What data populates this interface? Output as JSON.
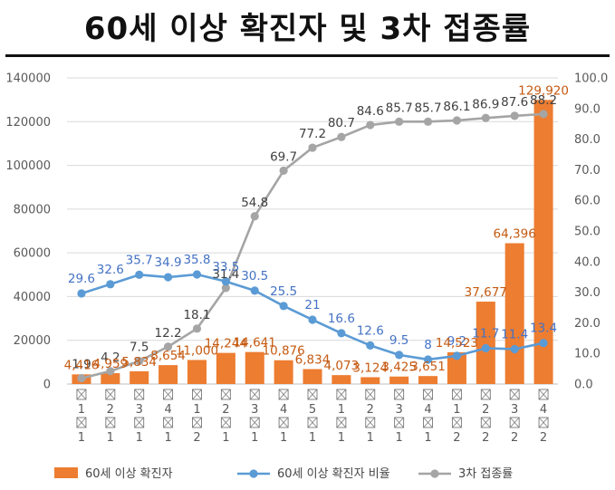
{
  "title": "60세 이상 확진자 및 3차 접종률",
  "colors": {
    "bar": "#ED7D31",
    "ratio_line": "#5B9BD5",
    "vax_line": "#A5A5A5",
    "ratio_label": "#4472C4",
    "bar_label": "#C55A11",
    "vax_label": "#404040"
  },
  "chart_data": {
    "type": "bar+line",
    "categories": [
      "⊠\n1\n⊠\n1",
      "⊠\n2\n⊠\n1",
      "⊠\n3\n⊠\n1",
      "⊠\n4\n⊠\n1",
      "⊠\n1\n⊠\n2",
      "⊠\n2\n⊠\n1",
      "⊠\n3\n⊠\n1",
      "⊠\n4\n⊠\n1",
      "⊠\n5\n⊠\n1",
      "⊠\n1\n⊠\n1",
      "⊠\n2\n⊠\n1",
      "⊠\n3\n⊠\n1",
      "⊠\n4\n⊠\n1",
      "⊠\n1\n⊠\n2",
      "⊠\n2\n⊠\n2",
      "⊠\n3\n⊠\n2",
      "⊠\n4\n⊠\n2"
    ],
    "category_rows": [
      [
        "1",
        "1"
      ],
      [
        "2",
        "1"
      ],
      [
        "3",
        "1"
      ],
      [
        "4",
        "1"
      ],
      [
        "1",
        "2"
      ],
      [
        "2",
        "1"
      ],
      [
        "3",
        "1"
      ],
      [
        "4",
        "1"
      ],
      [
        "5",
        "1"
      ],
      [
        "1",
        "1"
      ],
      [
        "2",
        "1"
      ],
      [
        "3",
        "1"
      ],
      [
        "4",
        "1"
      ],
      [
        "1",
        "2"
      ],
      [
        "2",
        "2"
      ],
      [
        "3",
        "2"
      ],
      [
        "4",
        "2"
      ]
    ],
    "y_left": {
      "ticks": [
        "0",
        "20000",
        "40000",
        "60000",
        "80000",
        "100000",
        "120000",
        "140000"
      ],
      "min": 0,
      "max": 140000
    },
    "y_right": {
      "ticks": [
        "0.0",
        "10.0",
        "20.0",
        "30.0",
        "40.0",
        "50.0",
        "60.0",
        "70.0",
        "80.0",
        "90.0",
        "100.0"
      ],
      "min": 0,
      "max": 100
    },
    "series": [
      {
        "name": "60세 이상 확진자",
        "type": "bar",
        "axis": "left",
        "values": [
          4416,
          4959,
          5834,
          8654,
          11000,
          14244,
          14641,
          10876,
          6834,
          4073,
          3124,
          3425,
          3651,
          14523,
          37677,
          64396,
          129920
        ],
        "labels": [
          "4,416",
          "4,959",
          "5,834",
          "8,654",
          "11,000",
          "14,244",
          "14,641",
          "10,876",
          "6,834",
          "4,073",
          "3,124",
          "3,425",
          "3,651",
          "14,523",
          "37,677",
          "64,396",
          "129,920"
        ]
      },
      {
        "name": "60세 이상 확진자 비율",
        "type": "line",
        "axis": "right",
        "values": [
          29.6,
          32.6,
          35.7,
          34.9,
          35.8,
          33.5,
          30.5,
          25.5,
          21,
          16.6,
          12.6,
          9.5,
          8,
          9.2,
          11.7,
          11.4,
          13.4
        ],
        "labels": [
          "29.6",
          "32.6",
          "35.7",
          "34.9",
          "35.8",
          "33.5",
          "30.5",
          "25.5",
          "21",
          "16.6",
          "12.6",
          "9.5",
          "8",
          "9.2",
          "11.7",
          "11.4",
          "13.4"
        ]
      },
      {
        "name": "3차 접종률",
        "type": "line",
        "axis": "right",
        "values": [
          1.9,
          4.2,
          7.5,
          12.2,
          18.1,
          31.4,
          54.8,
          69.7,
          77.2,
          80.7,
          84.6,
          85.7,
          85.7,
          86.1,
          86.9,
          87.6,
          88.2
        ],
        "labels": [
          "1.9",
          "4.2",
          "7.5",
          "12.2",
          "18.1",
          "31.4",
          "54.8",
          "69.7",
          "77.2",
          "80.7",
          "84.6",
          "85.7",
          "85.7",
          "86.1",
          "86.9",
          "87.6",
          "88.2"
        ]
      }
    ],
    "legend": [
      "60세 이상 확진자",
      "60세 이상 확진자 비율",
      "3차 접종률"
    ],
    "legend_position": "bottom"
  }
}
